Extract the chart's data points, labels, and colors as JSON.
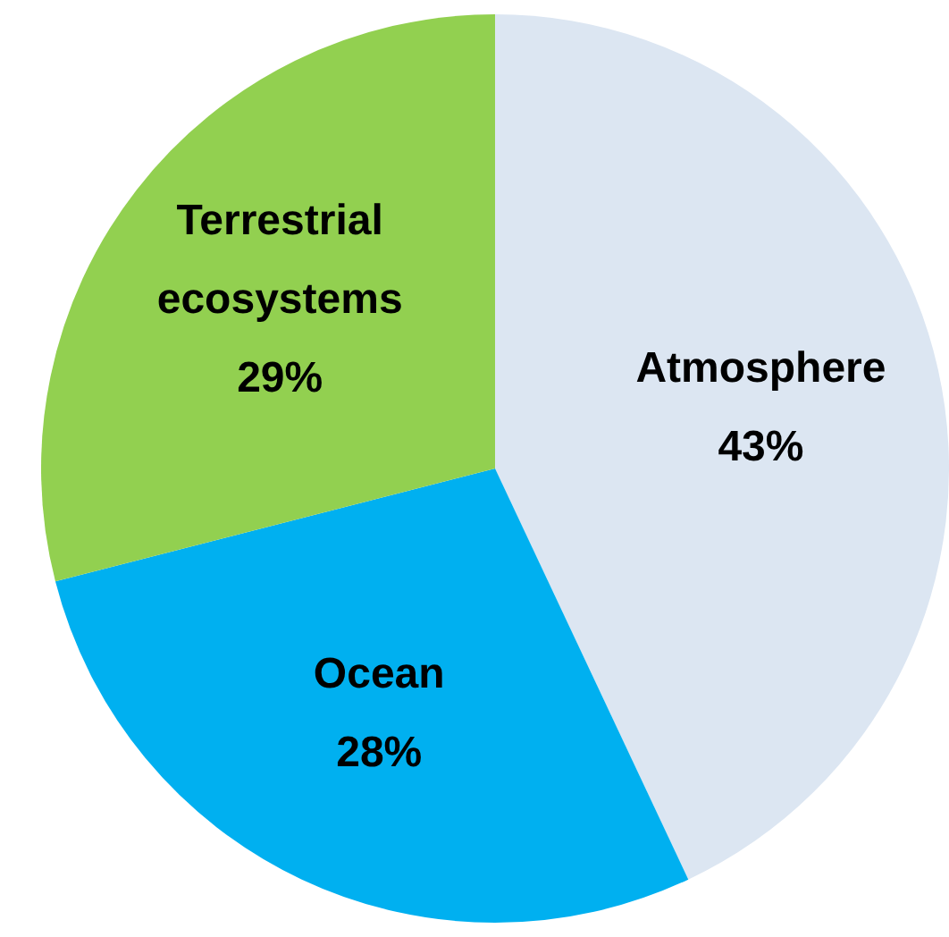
{
  "chart_data": {
    "type": "pie",
    "categories": [
      "Atmosphere",
      "Ocean",
      "Terrestrial ecosystems"
    ],
    "values": [
      43,
      28,
      29
    ],
    "colors": [
      "#dce6f2",
      "#00b0f0",
      "#92d050"
    ],
    "value_labels": [
      "43%",
      "28%",
      "29%"
    ],
    "legend": false
  }
}
